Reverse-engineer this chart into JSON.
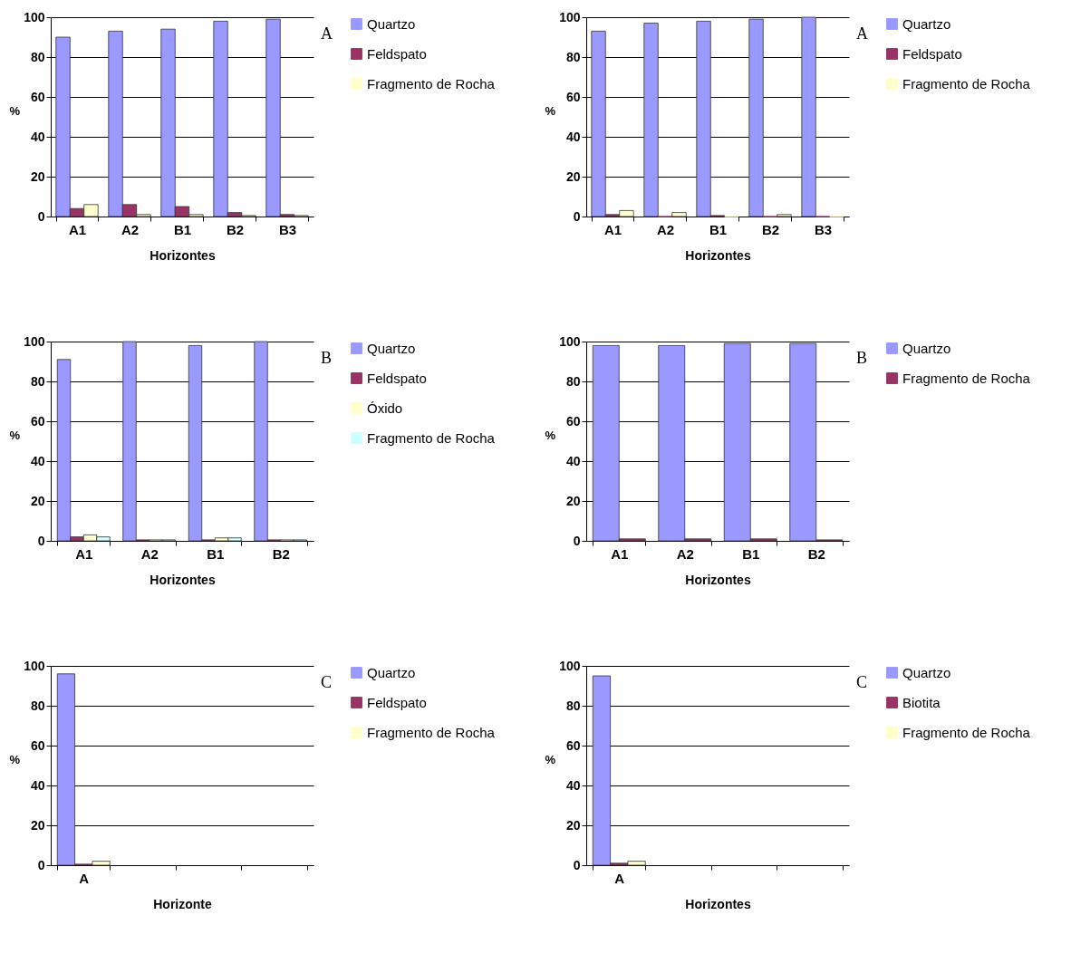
{
  "chart_data": [
    {
      "type": "bar",
      "categories": [
        "A1",
        "A2",
        "B1",
        "B2",
        "B3"
      ],
      "xlabel": "Horizontes",
      "ylabel": "%",
      "ylim": [
        0,
        100
      ],
      "yticks": [
        0,
        20,
        40,
        60,
        80,
        100
      ],
      "grid": "y",
      "legend": "right",
      "annotations": [
        "A"
      ],
      "series": [
        {
          "name": "Quartzo",
          "color": "#9999ff",
          "values": [
            90,
            93,
            94,
            98,
            99
          ]
        },
        {
          "name": "Feldspato",
          "color": "#993366",
          "values": [
            4,
            6,
            5,
            2,
            1
          ]
        },
        {
          "name": "Fragmento de Rocha",
          "color": "#ffffcc",
          "values": [
            6,
            1,
            1,
            0.5,
            0.5
          ]
        }
      ]
    },
    {
      "type": "bar",
      "categories": [
        "A1",
        "A2",
        "B1",
        "B2",
        "B3"
      ],
      "xlabel": "Horizontes",
      "ylabel": "%",
      "ylim": [
        0,
        100
      ],
      "yticks": [
        0,
        20,
        40,
        60,
        80,
        100
      ],
      "grid": "y",
      "legend": "right",
      "annotations": [
        "A"
      ],
      "series": [
        {
          "name": "Quartzo",
          "color": "#9999ff",
          "values": [
            93,
            97,
            98,
            99,
            100
          ]
        },
        {
          "name": "Feldspato",
          "color": "#993366",
          "values": [
            1,
            0,
            0.5,
            0,
            0
          ]
        },
        {
          "name": "Fragmento de Rocha",
          "color": "#ffffcc",
          "values": [
            3,
            2,
            0,
            1,
            0
          ]
        }
      ]
    },
    {
      "type": "bar",
      "categories": [
        "A1",
        "A2",
        "B1",
        "B2"
      ],
      "xlabel": "Horizontes",
      "ylabel": "%",
      "ylim": [
        0,
        100
      ],
      "yticks": [
        0,
        20,
        40,
        60,
        80,
        100
      ],
      "grid": "y",
      "legend": "right",
      "annotations": [
        "B"
      ],
      "series": [
        {
          "name": "Quartzo",
          "color": "#9999ff",
          "values": [
            91,
            100,
            98,
            100
          ]
        },
        {
          "name": "Feldspato",
          "color": "#993366",
          "values": [
            2,
            0.5,
            0.5,
            0.5
          ]
        },
        {
          "name": "Óxido",
          "color": "#ffffcc",
          "values": [
            3,
            0.5,
            1.5,
            0.5
          ]
        },
        {
          "name": "Fragmento de Rocha",
          "color": "#ccffff",
          "values": [
            2,
            0.5,
            1.5,
            0.5
          ]
        }
      ]
    },
    {
      "type": "bar",
      "categories": [
        "A1",
        "A2",
        "B1",
        "B2"
      ],
      "xlabel": "Horizontes",
      "ylabel": "%",
      "ylim": [
        0,
        100
      ],
      "yticks": [
        0,
        20,
        40,
        60,
        80,
        100
      ],
      "grid": "y",
      "legend": "right",
      "annotations": [
        "B"
      ],
      "series": [
        {
          "name": "Quartzo",
          "color": "#9999ff",
          "values": [
            98,
            98,
            99,
            99
          ]
        },
        {
          "name": "Fragmento de Rocha",
          "color": "#993366",
          "values": [
            1,
            1,
            1,
            0.5
          ]
        }
      ]
    },
    {
      "type": "bar",
      "categories": [
        "A",
        null,
        null,
        null
      ],
      "xlabel": "Horizonte",
      "ylabel": "%",
      "ylim": [
        0,
        100
      ],
      "yticks": [
        0,
        20,
        40,
        60,
        80,
        100
      ],
      "grid": "y",
      "legend": "right",
      "annotations": [
        "C"
      ],
      "series": [
        {
          "name": "Quartzo",
          "color": "#9999ff",
          "values": [
            96,
            null,
            null,
            null
          ]
        },
        {
          "name": "Feldspato",
          "color": "#993366",
          "values": [
            0.5,
            null,
            null,
            null
          ]
        },
        {
          "name": "Fragmento de Rocha",
          "color": "#ffffcc",
          "values": [
            2,
            null,
            null,
            null
          ]
        }
      ]
    },
    {
      "type": "bar",
      "categories": [
        "A",
        null,
        null,
        null
      ],
      "xlabel": "Horizontes",
      "ylabel": "%",
      "ylim": [
        0,
        100
      ],
      "yticks": [
        0,
        20,
        40,
        60,
        80,
        100
      ],
      "grid": "y",
      "legend": "right",
      "annotations": [
        "C"
      ],
      "series": [
        {
          "name": "Quartzo",
          "color": "#9999ff",
          "values": [
            95,
            null,
            null,
            null
          ]
        },
        {
          "name": "Biotita",
          "color": "#993366",
          "values": [
            1,
            null,
            null,
            null
          ]
        },
        {
          "name": "Fragmento de Rocha",
          "color": "#ffffcc",
          "values": [
            2,
            null,
            null,
            null
          ]
        }
      ]
    }
  ]
}
